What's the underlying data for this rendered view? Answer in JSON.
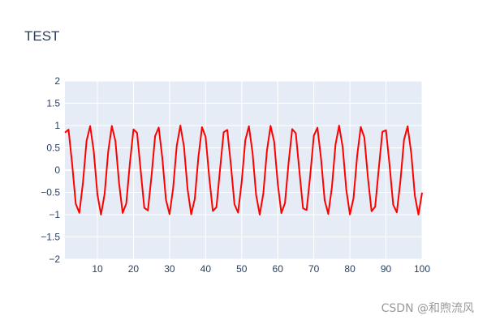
{
  "chart_data": {
    "type": "line",
    "title": "TEST",
    "xlabel": "",
    "ylabel": "",
    "xlim": [
      1,
      100
    ],
    "ylim": [
      -2,
      2
    ],
    "x_ticks": [
      10,
      20,
      30,
      40,
      50,
      60,
      70,
      80,
      90,
      100
    ],
    "y_ticks": [
      -2,
      -1.5,
      -1,
      -0.5,
      0,
      0.5,
      1,
      1.5,
      2
    ],
    "grid": true,
    "legend": "none",
    "series": [
      {
        "x": [
          1,
          2,
          3,
          4,
          5,
          6,
          7,
          8,
          9,
          10,
          11,
          12,
          13,
          14,
          15,
          16,
          17,
          18,
          19,
          20,
          21,
          22,
          23,
          24,
          25,
          26,
          27,
          28,
          29,
          30,
          31,
          32,
          33,
          34,
          35,
          36,
          37,
          38,
          39,
          40,
          41,
          42,
          43,
          44,
          45,
          46,
          47,
          48,
          49,
          50,
          51,
          52,
          53,
          54,
          55,
          56,
          57,
          58,
          59,
          60,
          61,
          62,
          63,
          64,
          65,
          66,
          67,
          68,
          69,
          70,
          71,
          72,
          73,
          74,
          75,
          76,
          77,
          78,
          79,
          80,
          81,
          82,
          83,
          84,
          85,
          86,
          87,
          88,
          89,
          90,
          91,
          92,
          93,
          94,
          95,
          96,
          97,
          98,
          99,
          100
        ],
        "values": [
          0.841,
          0.909,
          0.141,
          -0.757,
          -0.959,
          -0.279,
          0.657,
          0.989,
          0.412,
          -0.544,
          -1.0,
          -0.537,
          0.42,
          0.991,
          0.65,
          -0.288,
          -0.961,
          -0.751,
          0.15,
          0.913,
          0.837,
          -0.009,
          -0.846,
          -0.906,
          -0.132,
          0.763,
          0.956,
          0.271,
          -0.664,
          -0.988,
          -0.404,
          0.551,
          1.0,
          0.529,
          -0.428,
          -0.992,
          -0.644,
          0.296,
          0.964,
          0.745,
          -0.159,
          -0.917,
          -0.832,
          0.018,
          0.851,
          0.902,
          0.124,
          -0.768,
          -0.954,
          -0.262,
          0.67,
          0.987,
          0.396,
          -0.559,
          -1.0,
          -0.522,
          0.436,
          0.993,
          0.637,
          -0.305,
          -0.966,
          -0.739,
          0.167,
          0.92,
          0.827,
          -0.027,
          -0.856,
          -0.898,
          -0.115,
          0.774,
          0.951,
          0.254,
          -0.677,
          -0.985,
          -0.388,
          0.566,
          0.999,
          0.514,
          -0.444,
          -0.994,
          -0.631,
          0.313,
          0.968,
          0.733,
          -0.176,
          -0.923,
          -0.822,
          0.035,
          0.86,
          0.894,
          0.106,
          -0.779,
          -0.948,
          -0.245,
          0.683,
          0.984,
          0.38,
          -0.573,
          -0.999,
          -0.506
        ],
        "color": "#ff0000"
      }
    ],
    "colors": {
      "plot_bg": "#e5ecf6",
      "grid": "#ffffff",
      "text": "#2a3f5f",
      "line": "#ff0000"
    }
  },
  "watermark": "CSDN @和煦流风"
}
